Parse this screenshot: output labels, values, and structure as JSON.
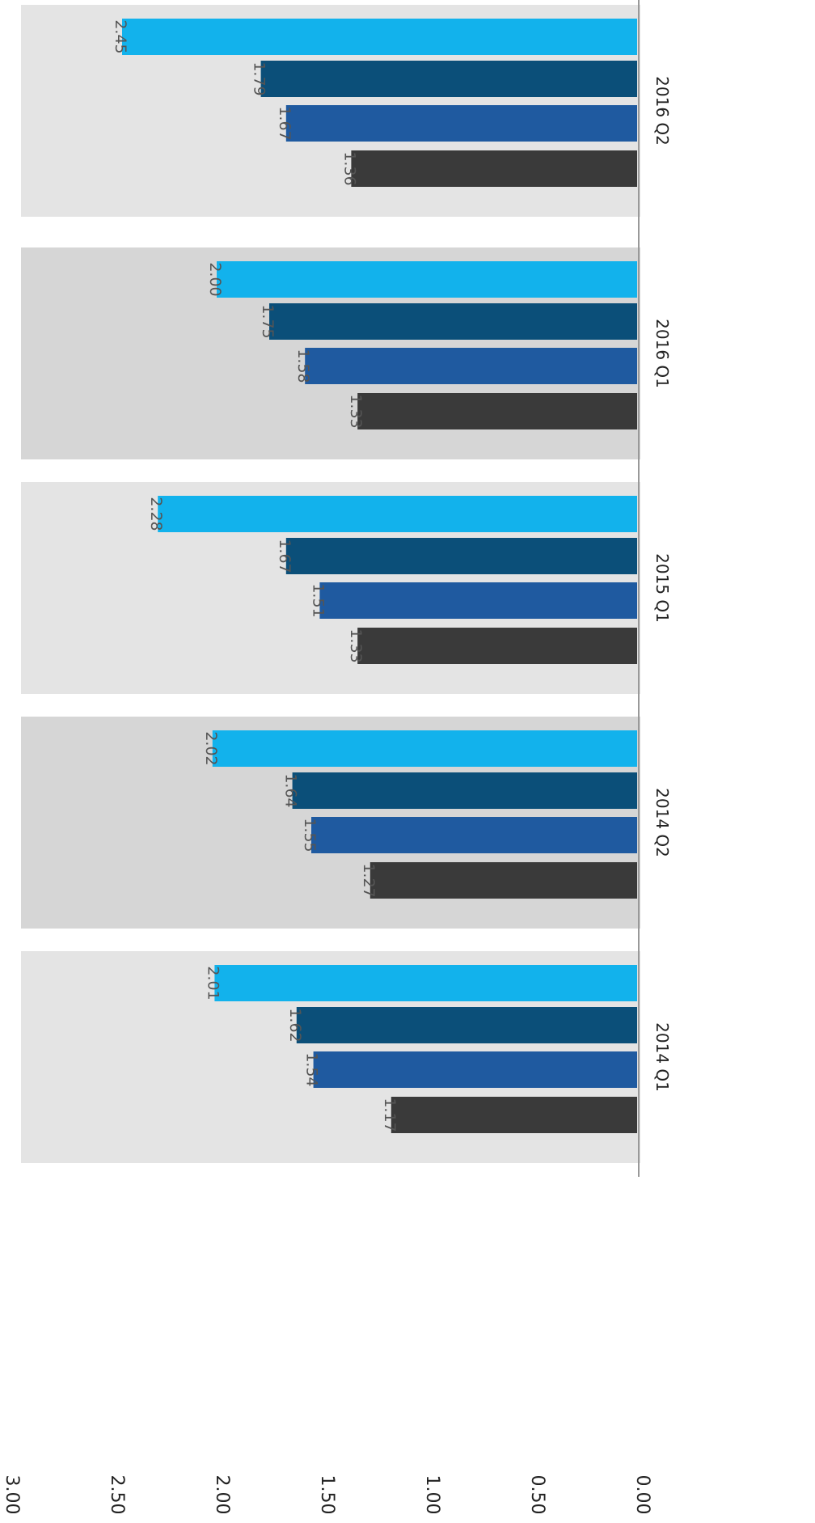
{
  "chart_data": {
    "type": "bar",
    "orientation": "rotated-90-clockwise",
    "categories": [
      "2014 Q1",
      "2014 Q2",
      "2015 Q1",
      "2016 Q1",
      "2016 Q2"
    ],
    "series": [
      {
        "values": [
          1.17,
          1.27,
          1.33,
          1.33,
          1.36
        ],
        "color": "#3a3a3a"
      },
      {
        "values": [
          1.54,
          1.55,
          1.51,
          1.58,
          1.67
        ],
        "color": "#1f5aa0"
      },
      {
        "values": [
          1.62,
          1.64,
          1.67,
          1.75,
          1.79
        ],
        "color": "#0b4f79"
      },
      {
        "values": [
          2.01,
          2.02,
          2.28,
          2.0,
          2.45
        ],
        "color": "#12b2ec"
      }
    ],
    "value_labels": [
      [
        "1.17",
        "1.27",
        "1.33",
        "1.33",
        "1.36"
      ],
      [
        "1.54",
        "1.55",
        "1.51",
        "1.58",
        "1.67"
      ],
      [
        "1.62",
        "1.64",
        "1.67",
        "1.75",
        "1.79"
      ],
      [
        "2.01",
        "2.02",
        "2.28",
        "2.00",
        "2.45"
      ]
    ],
    "y_ticks": [
      "0.00",
      "0.50",
      "1.00",
      "1.50",
      "2.00",
      "2.50",
      "3.00"
    ],
    "ylim": [
      0,
      3
    ],
    "grid": false,
    "legend": "none",
    "group_background_colors": [
      "#e4e4e4",
      "#d6d6d6",
      "#e4e4e4",
      "#d6d6d6",
      "#e4e4e4"
    ]
  }
}
